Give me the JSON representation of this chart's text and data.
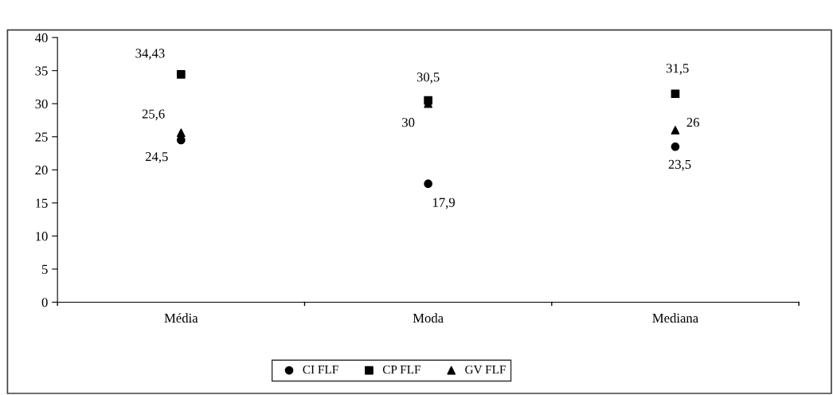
{
  "chart_data": {
    "type": "scatter",
    "categories": [
      "Média",
      "Moda",
      "Mediana"
    ],
    "ylim": [
      0,
      40
    ],
    "yticks": [
      0,
      5,
      10,
      15,
      20,
      25,
      30,
      35,
      40
    ],
    "grid": false,
    "legend": "bottom",
    "series": [
      {
        "name": "CI FLF",
        "color": "#000000",
        "marker": "circle",
        "values": [
          24.5,
          17.9,
          23.5
        ],
        "value_labels": [
          "24,5",
          "17,9",
          "23,5"
        ]
      },
      {
        "name": "CP FLF",
        "color": "#000000",
        "marker": "square",
        "values": [
          34.43,
          30.5,
          31.5
        ],
        "value_labels": [
          "34,43",
          "30,5",
          "31,5"
        ]
      },
      {
        "name": "GV FLF",
        "color": "#000000",
        "marker": "triangle",
        "values": [
          25.6,
          30,
          26
        ],
        "value_labels": [
          "25,6",
          "30",
          "26"
        ]
      }
    ]
  }
}
